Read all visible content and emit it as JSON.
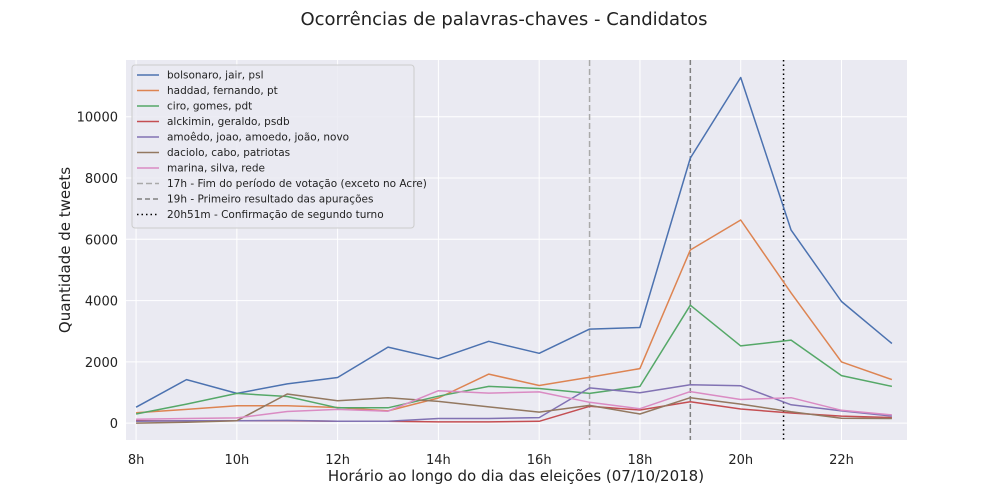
{
  "chart_data": {
    "type": "line",
    "title": "Ocorrências de palavras-chaves - Candidatos",
    "xlabel": "Horário ao longo do dia das eleições (07/10/2018)",
    "ylabel": "Quantidade de tweets",
    "x": [
      8,
      9,
      10,
      11,
      12,
      13,
      14,
      15,
      16,
      17,
      18,
      19,
      20,
      21,
      22,
      23
    ],
    "xlim": [
      7.8,
      23.3
    ],
    "ylim": [
      -550,
      11850
    ],
    "x_ticks": [
      8,
      10,
      12,
      14,
      16,
      18,
      20,
      22
    ],
    "x_tick_labels": [
      "8h",
      "10h",
      "12h",
      "14h",
      "16h",
      "18h",
      "20h",
      "22h"
    ],
    "y_ticks": [
      0,
      2000,
      4000,
      6000,
      8000,
      10000
    ],
    "y_tick_labels": [
      "0",
      "2000",
      "4000",
      "6000",
      "8000",
      "10000"
    ],
    "grid": true,
    "legend_position": "top-left",
    "series": [
      {
        "name": "bolsonaro, jair, psl",
        "color": "#4c72b0",
        "values": [
          520,
          1420,
          970,
          1280,
          1490,
          2480,
          2100,
          2670,
          2280,
          3070,
          3120,
          8650,
          11280,
          6300,
          3970,
          2600
        ]
      },
      {
        "name": "haddad, fernando, pt",
        "color": "#dd8452",
        "values": [
          340,
          450,
          570,
          570,
          510,
          400,
          820,
          1600,
          1230,
          1500,
          1780,
          5650,
          6630,
          4250,
          2000,
          1420
        ]
      },
      {
        "name": "ciro, gomes, pdt",
        "color": "#55a868",
        "values": [
          300,
          620,
          970,
          870,
          500,
          500,
          880,
          1200,
          1130,
          970,
          1200,
          3850,
          2520,
          2710,
          1550,
          1200
        ]
      },
      {
        "name": "alckimin, geraldo, psdb",
        "color": "#c44e52",
        "values": [
          80,
          70,
          80,
          80,
          60,
          60,
          40,
          40,
          60,
          550,
          430,
          700,
          460,
          330,
          230,
          180
        ]
      },
      {
        "name": "amoêdo, joao, amoedo, joão, novo",
        "color": "#8172b3",
        "values": [
          60,
          80,
          80,
          90,
          60,
          60,
          150,
          150,
          180,
          1150,
          990,
          1250,
          1220,
          600,
          400,
          230
        ]
      },
      {
        "name": "daciolo, cabo, patriotas",
        "color": "#937860",
        "values": [
          0,
          30,
          80,
          950,
          730,
          830,
          710,
          530,
          360,
          580,
          300,
          830,
          620,
          370,
          160,
          150
        ]
      },
      {
        "name": "marina, silva, rede",
        "color": "#da8bc3",
        "values": [
          130,
          150,
          170,
          380,
          450,
          390,
          1060,
          980,
          1020,
          680,
          470,
          1030,
          770,
          830,
          420,
          270
        ]
      }
    ],
    "vlines": [
      {
        "name": "17h - Fim do período de votação (exceto no Acre)",
        "x": 17,
        "style": "dashed-light",
        "color": "#a9a9a9"
      },
      {
        "name": "19h - Primeiro resultado das apurações",
        "x": 19,
        "style": "dashed",
        "color": "#808080"
      },
      {
        "name": "20h51m - Confirmação de segundo turno",
        "x": 20.85,
        "style": "dotted",
        "color": "#000000"
      }
    ]
  }
}
